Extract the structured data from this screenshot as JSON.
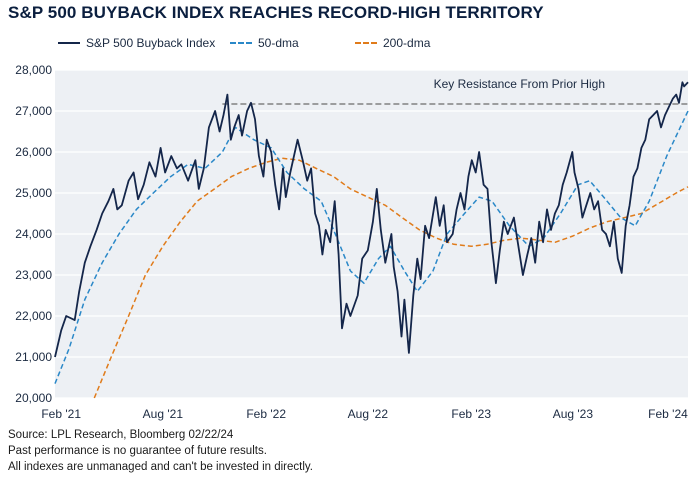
{
  "title": "S&P 500 BUYBACK INDEX REACHES RECORD-HIGH TERRITORY",
  "footer": {
    "source": "Source: LPL Research, Bloomberg 02/22/24",
    "disclaimer1": "Past performance is no guarantee of future results.",
    "disclaimer2": "All indexes are unmanaged and can't be invested in directly."
  },
  "colors": {
    "index": "#14264a",
    "dma50": "#2a88c8",
    "dma200": "#e07b1a",
    "resistance": "#6b6b6b",
    "plot_bg": "#edf0f4",
    "grid": "#ffffff"
  },
  "chart_data": {
    "type": "line",
    "ylim": [
      20000,
      28000
    ],
    "y_ticks": [
      20000,
      21000,
      22000,
      23000,
      24000,
      25000,
      26000,
      27000,
      28000
    ],
    "y_tick_labels": [
      "20,000",
      "21,000",
      "22,000",
      "23,000",
      "24,000",
      "25,000",
      "26,000",
      "27,000",
      "28,000"
    ],
    "x_range": [
      "2021-01-21",
      "2024-02-22"
    ],
    "x_ticks": [
      "2021-02-01",
      "2021-08-01",
      "2022-02-01",
      "2022-08-01",
      "2023-02-01",
      "2023-08-01",
      "2024-02-01"
    ],
    "x_tick_labels": [
      "Feb '21",
      "Aug '21",
      "Feb '22",
      "Aug '22",
      "Feb '23",
      "Aug '23",
      "Feb '24"
    ],
    "grid": "horizontal",
    "legend": "top-left",
    "annotation": {
      "text": "Key Resistance From Prior High",
      "level": 27170,
      "x_start": "2021-11-15",
      "x_end": "2024-02-22"
    },
    "series": [
      {
        "name": "S&P 500 Buyback Index",
        "style": "solid",
        "points": [
          [
            "2021-01-21",
            21000
          ],
          [
            "2021-02-01",
            21650
          ],
          [
            "2021-02-10",
            22000
          ],
          [
            "2021-02-25",
            21900
          ],
          [
            "2021-03-05",
            22600
          ],
          [
            "2021-03-15",
            23300
          ],
          [
            "2021-03-25",
            23700
          ],
          [
            "2021-04-05",
            24100
          ],
          [
            "2021-04-15",
            24500
          ],
          [
            "2021-04-26",
            24800
          ],
          [
            "2021-05-05",
            25100
          ],
          [
            "2021-05-12",
            24600
          ],
          [
            "2021-05-20",
            24700
          ],
          [
            "2021-06-01",
            25300
          ],
          [
            "2021-06-10",
            25500
          ],
          [
            "2021-06-18",
            24850
          ],
          [
            "2021-06-28",
            25200
          ],
          [
            "2021-07-08",
            25750
          ],
          [
            "2021-07-19",
            25400
          ],
          [
            "2021-07-28",
            26100
          ],
          [
            "2021-08-05",
            25500
          ],
          [
            "2021-08-16",
            25900
          ],
          [
            "2021-08-26",
            25600
          ],
          [
            "2021-09-03",
            25700
          ],
          [
            "2021-09-15",
            25300
          ],
          [
            "2021-09-28",
            25800
          ],
          [
            "2021-10-04",
            25100
          ],
          [
            "2021-10-13",
            25600
          ],
          [
            "2021-10-22",
            26600
          ],
          [
            "2021-11-02",
            27000
          ],
          [
            "2021-11-10",
            26500
          ],
          [
            "2021-11-17",
            26900
          ],
          [
            "2021-11-24",
            27400
          ],
          [
            "2021-11-30",
            26300
          ],
          [
            "2021-12-06",
            26600
          ],
          [
            "2021-12-14",
            26900
          ],
          [
            "2021-12-20",
            26400
          ],
          [
            "2021-12-29",
            27000
          ],
          [
            "2022-01-05",
            27200
          ],
          [
            "2022-01-12",
            26800
          ],
          [
            "2022-01-19",
            25900
          ],
          [
            "2022-01-27",
            25400
          ],
          [
            "2022-02-02",
            26300
          ],
          [
            "2022-02-10",
            26000
          ],
          [
            "2022-02-17",
            25200
          ],
          [
            "2022-02-24",
            24600
          ],
          [
            "2022-03-03",
            25600
          ],
          [
            "2022-03-08",
            24900
          ],
          [
            "2022-03-16",
            25500
          ],
          [
            "2022-03-29",
            26300
          ],
          [
            "2022-04-07",
            25800
          ],
          [
            "2022-04-15",
            25300
          ],
          [
            "2022-04-22",
            25600
          ],
          [
            "2022-04-29",
            24500
          ],
          [
            "2022-05-06",
            24200
          ],
          [
            "2022-05-12",
            23500
          ],
          [
            "2022-05-18",
            24100
          ],
          [
            "2022-05-26",
            23800
          ],
          [
            "2022-06-03",
            24800
          ],
          [
            "2022-06-10",
            23500
          ],
          [
            "2022-06-16",
            21700
          ],
          [
            "2022-06-24",
            22300
          ],
          [
            "2022-07-01",
            22000
          ],
          [
            "2022-07-14",
            22500
          ],
          [
            "2022-07-22",
            23400
          ],
          [
            "2022-08-01",
            23600
          ],
          [
            "2022-08-10",
            24300
          ],
          [
            "2022-08-17",
            25100
          ],
          [
            "2022-08-24",
            24100
          ],
          [
            "2022-09-01",
            23300
          ],
          [
            "2022-09-12",
            24000
          ],
          [
            "2022-09-16",
            23200
          ],
          [
            "2022-09-23",
            22600
          ],
          [
            "2022-09-30",
            21500
          ],
          [
            "2022-10-05",
            22400
          ],
          [
            "2022-10-13",
            21100
          ],
          [
            "2022-10-21",
            22500
          ],
          [
            "2022-10-28",
            23400
          ],
          [
            "2022-11-03",
            22900
          ],
          [
            "2022-11-11",
            24200
          ],
          [
            "2022-11-18",
            23900
          ],
          [
            "2022-11-30",
            24900
          ],
          [
            "2022-12-07",
            24200
          ],
          [
            "2022-12-14",
            24700
          ],
          [
            "2022-12-20",
            23800
          ],
          [
            "2022-12-30",
            24000
          ],
          [
            "2023-01-06",
            24600
          ],
          [
            "2023-01-13",
            25000
          ],
          [
            "2023-01-20",
            24600
          ],
          [
            "2023-01-27",
            25400
          ],
          [
            "2023-02-02",
            25800
          ],
          [
            "2023-02-09",
            25500
          ],
          [
            "2023-02-15",
            26000
          ],
          [
            "2023-02-23",
            25200
          ],
          [
            "2023-03-02",
            25100
          ],
          [
            "2023-03-09",
            23800
          ],
          [
            "2023-03-13",
            23300
          ],
          [
            "2023-03-17",
            22800
          ],
          [
            "2023-03-24",
            23600
          ],
          [
            "2023-03-31",
            24300
          ],
          [
            "2023-04-07",
            24000
          ],
          [
            "2023-04-18",
            24400
          ],
          [
            "2023-04-26",
            23700
          ],
          [
            "2023-05-04",
            23000
          ],
          [
            "2023-05-12",
            23500
          ],
          [
            "2023-05-19",
            23900
          ],
          [
            "2023-05-26",
            23300
          ],
          [
            "2023-06-02",
            24300
          ],
          [
            "2023-06-09",
            23800
          ],
          [
            "2023-06-16",
            24600
          ],
          [
            "2023-06-23",
            24100
          ],
          [
            "2023-06-30",
            24500
          ],
          [
            "2023-07-07",
            24700
          ],
          [
            "2023-07-14",
            25200
          ],
          [
            "2023-07-21",
            25500
          ],
          [
            "2023-07-31",
            26000
          ],
          [
            "2023-08-04",
            25500
          ],
          [
            "2023-08-11",
            25100
          ],
          [
            "2023-08-18",
            24400
          ],
          [
            "2023-08-25",
            24700
          ],
          [
            "2023-09-01",
            25000
          ],
          [
            "2023-09-08",
            24600
          ],
          [
            "2023-09-15",
            24800
          ],
          [
            "2023-09-22",
            24100
          ],
          [
            "2023-09-29",
            24000
          ],
          [
            "2023-10-06",
            23700
          ],
          [
            "2023-10-13",
            24300
          ],
          [
            "2023-10-20",
            23400
          ],
          [
            "2023-10-27",
            23050
          ],
          [
            "2023-11-03",
            24200
          ],
          [
            "2023-11-10",
            24700
          ],
          [
            "2023-11-17",
            25400
          ],
          [
            "2023-11-24",
            25600
          ],
          [
            "2023-12-01",
            26100
          ],
          [
            "2023-12-08",
            26300
          ],
          [
            "2023-12-15",
            26800
          ],
          [
            "2023-12-22",
            26900
          ],
          [
            "2023-12-29",
            27000
          ],
          [
            "2024-01-05",
            26600
          ],
          [
            "2024-01-12",
            26900
          ],
          [
            "2024-01-19",
            27100
          ],
          [
            "2024-01-26",
            27300
          ],
          [
            "2024-02-01",
            27400
          ],
          [
            "2024-02-06",
            27200
          ],
          [
            "2024-02-12",
            27700
          ],
          [
            "2024-02-15",
            27600
          ],
          [
            "2024-02-22",
            27700
          ]
        ]
      },
      {
        "name": "50-dma",
        "style": "dashed",
        "points": [
          [
            "2021-01-21",
            20350
          ],
          [
            "2021-02-15",
            21200
          ],
          [
            "2021-03-15",
            22400
          ],
          [
            "2021-04-15",
            23300
          ],
          [
            "2021-05-15",
            24000
          ],
          [
            "2021-06-15",
            24600
          ],
          [
            "2021-07-15",
            25000
          ],
          [
            "2021-08-15",
            25400
          ],
          [
            "2021-09-15",
            25700
          ],
          [
            "2021-10-15",
            25600
          ],
          [
            "2021-11-15",
            26000
          ],
          [
            "2021-12-08",
            26600
          ],
          [
            "2022-01-10",
            26300
          ],
          [
            "2022-02-10",
            26100
          ],
          [
            "2022-03-10",
            25500
          ],
          [
            "2022-04-10",
            25100
          ],
          [
            "2022-05-10",
            24800
          ],
          [
            "2022-06-01",
            24100
          ],
          [
            "2022-07-01",
            23100
          ],
          [
            "2022-07-25",
            22800
          ],
          [
            "2022-08-20",
            23400
          ],
          [
            "2022-09-10",
            23700
          ],
          [
            "2022-10-05",
            23100
          ],
          [
            "2022-10-28",
            22600
          ],
          [
            "2022-11-25",
            23100
          ],
          [
            "2022-12-20",
            24000
          ],
          [
            "2023-01-20",
            24500
          ],
          [
            "2023-02-15",
            24900
          ],
          [
            "2023-03-10",
            24800
          ],
          [
            "2023-04-10",
            24200
          ],
          [
            "2023-05-15",
            23700
          ],
          [
            "2023-06-10",
            23900
          ],
          [
            "2023-07-10",
            24500
          ],
          [
            "2023-08-10",
            25200
          ],
          [
            "2023-08-31",
            25300
          ],
          [
            "2023-09-25",
            24900
          ],
          [
            "2023-10-25",
            24400
          ],
          [
            "2023-11-20",
            24200
          ],
          [
            "2023-12-15",
            24800
          ],
          [
            "2024-01-15",
            25900
          ],
          [
            "2024-02-22",
            27000
          ]
        ]
      },
      {
        "name": "200-dma",
        "style": "dashed",
        "points": [
          [
            "2021-04-01",
            20000
          ],
          [
            "2021-05-01",
            21000
          ],
          [
            "2021-06-01",
            22000
          ],
          [
            "2021-07-01",
            23000
          ],
          [
            "2021-08-01",
            23700
          ],
          [
            "2021-09-01",
            24300
          ],
          [
            "2021-10-01",
            24800
          ],
          [
            "2021-11-01",
            25100
          ],
          [
            "2021-12-01",
            25400
          ],
          [
            "2022-01-01",
            25600
          ],
          [
            "2022-02-01",
            25750
          ],
          [
            "2022-03-01",
            25850
          ],
          [
            "2022-04-01",
            25800
          ],
          [
            "2022-05-01",
            25600
          ],
          [
            "2022-06-01",
            25400
          ],
          [
            "2022-07-01",
            25100
          ],
          [
            "2022-08-01",
            24900
          ],
          [
            "2022-09-01",
            24700
          ],
          [
            "2022-10-01",
            24400
          ],
          [
            "2022-11-01",
            24100
          ],
          [
            "2022-12-01",
            23900
          ],
          [
            "2023-01-01",
            23750
          ],
          [
            "2023-02-01",
            23700
          ],
          [
            "2023-03-01",
            23750
          ],
          [
            "2023-04-01",
            23850
          ],
          [
            "2023-05-01",
            23900
          ],
          [
            "2023-06-01",
            23850
          ],
          [
            "2023-07-01",
            23800
          ],
          [
            "2023-08-01",
            23950
          ],
          [
            "2023-09-01",
            24150
          ],
          [
            "2023-10-01",
            24300
          ],
          [
            "2023-11-01",
            24400
          ],
          [
            "2023-12-01",
            24500
          ],
          [
            "2024-01-01",
            24750
          ],
          [
            "2024-02-01",
            25000
          ],
          [
            "2024-02-22",
            25150
          ]
        ]
      }
    ]
  }
}
